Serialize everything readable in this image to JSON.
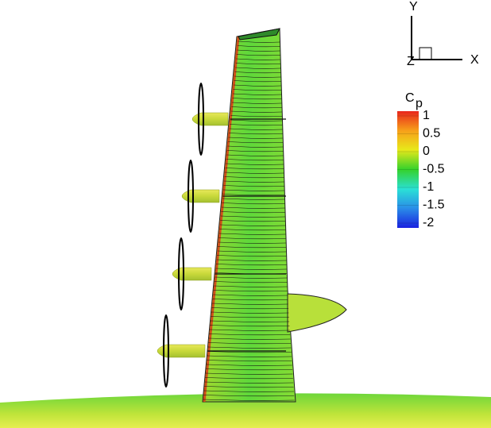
{
  "colorbar": {
    "title": "C",
    "title_subscript": "p",
    "range": [
      -2,
      1
    ],
    "ticks": [
      1,
      0.5,
      0,
      -0.5,
      -1,
      -1.5,
      -2
    ]
  },
  "axes_triad": {
    "y_label": "Y",
    "x_label": "X",
    "z_label": "Z"
  }
}
